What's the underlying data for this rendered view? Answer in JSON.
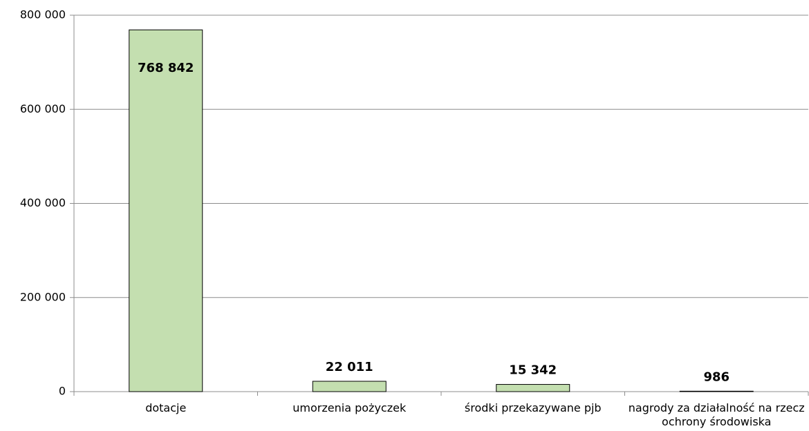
{
  "chart_data": {
    "type": "bar",
    "categories": [
      "dotacje",
      "umorzenia pożyczek",
      "środki przekazywane pjb",
      "nagrody za działalność na rzecz ochrony środowiska"
    ],
    "values": [
      768842,
      22011,
      15342,
      986
    ],
    "value_labels": [
      "768 842",
      "22 011",
      "15 342",
      "986"
    ],
    "color": "#c4dfb0",
    "ylim": [
      0,
      800000
    ],
    "yticks": [
      0,
      {
        "value": 200000,
        "label": "200 000"
      },
      {
        "value": 400000,
        "label": "400 000"
      },
      {
        "value": 600000,
        "label": "600 000"
      },
      {
        "value": 800000,
        "label": "800 000"
      }
    ],
    "grid": true
  }
}
